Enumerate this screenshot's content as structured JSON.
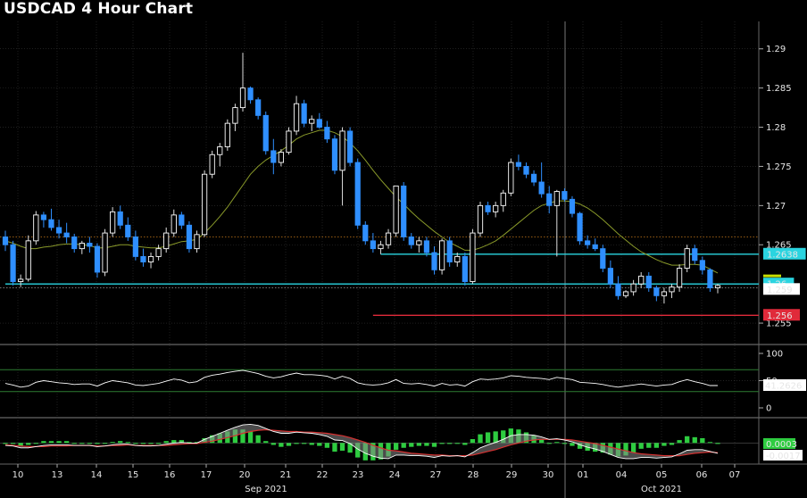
{
  "title": "USDCAD 4 Hour Chart",
  "colors": {
    "background": "#000000",
    "bull_candle": "#ffffff",
    "bear_candle": "#2f8fff",
    "moving_average": "#8a9a2a",
    "support_line": "#2ad4e0",
    "resistance_line": "#2ad4e0",
    "low_line": "#e02a3a",
    "rsi_line": "#ffffff",
    "rsi_bands": "#2e7d32",
    "macd_line": "#ffffff",
    "signal_line": "#d43030",
    "histogram_pos": "#2ecc40",
    "histogram_neg": "#2ecc40",
    "grid": "#333333"
  },
  "chart_data": [
    {
      "type": "candlestick",
      "panel": "price",
      "title": "USDCAD 4 Hour Chart",
      "ylim": [
        1.2525,
        1.2935
      ],
      "y_ticks": [
        "1.29",
        "1.285",
        "1.28",
        "1.275",
        "1.27",
        "1.265",
        "1.255"
      ],
      "x_tick_labels": [
        "10",
        "13",
        "14",
        "15",
        "16",
        "17",
        "20",
        "21",
        "22",
        "23",
        "24",
        "27",
        "28",
        "29",
        "30",
        "01",
        "04",
        "05",
        "06",
        "07"
      ],
      "x_group_labels": [
        "Sep 2021",
        "Oct 2021"
      ],
      "grid": true,
      "candles": [
        [
          1.266,
          1.2668,
          1.2642,
          1.265
        ],
        [
          1.265,
          1.2655,
          1.2598,
          1.2603
        ],
        [
          1.2603,
          1.2612,
          1.2596,
          1.2606
        ],
        [
          1.2606,
          1.2662,
          1.2603,
          1.2655
        ],
        [
          1.2655,
          1.2693,
          1.265,
          1.2688
        ],
        [
          1.2688,
          1.2692,
          1.2672,
          1.2682
        ],
        [
          1.2682,
          1.2696,
          1.2668,
          1.2672
        ],
        [
          1.2672,
          1.2682,
          1.2658,
          1.2665
        ],
        [
          1.2665,
          1.2678,
          1.2652,
          1.266
        ],
        [
          1.266,
          1.2664,
          1.264,
          1.2645
        ],
        [
          1.2645,
          1.2655,
          1.2638,
          1.2652
        ],
        [
          1.2652,
          1.266,
          1.264,
          1.2648
        ],
        [
          1.2648,
          1.2652,
          1.2608,
          1.2615
        ],
        [
          1.2615,
          1.267,
          1.261,
          1.2665
        ],
        [
          1.2665,
          1.2698,
          1.266,
          1.2692
        ],
        [
          1.2692,
          1.27,
          1.267,
          1.2675
        ],
        [
          1.2675,
          1.2685,
          1.2655,
          1.266
        ],
        [
          1.266,
          1.2668,
          1.263,
          1.2635
        ],
        [
          1.2635,
          1.2645,
          1.2622,
          1.2628
        ],
        [
          1.2628,
          1.264,
          1.262,
          1.2635
        ],
        [
          1.2635,
          1.265,
          1.263,
          1.2645
        ],
        [
          1.2645,
          1.2672,
          1.264,
          1.2665
        ],
        [
          1.2665,
          1.2695,
          1.266,
          1.2688
        ],
        [
          1.2688,
          1.2692,
          1.267,
          1.2675
        ],
        [
          1.2675,
          1.268,
          1.264,
          1.2645
        ],
        [
          1.2645,
          1.2668,
          1.264,
          1.2663
        ],
        [
          1.2663,
          1.2745,
          1.266,
          1.274
        ],
        [
          1.274,
          1.277,
          1.2735,
          1.2765
        ],
        [
          1.2765,
          1.278,
          1.275,
          1.2775
        ],
        [
          1.2775,
          1.281,
          1.277,
          1.2805
        ],
        [
          1.2805,
          1.283,
          1.2795,
          1.2825
        ],
        [
          1.2825,
          1.2895,
          1.282,
          1.285
        ],
        [
          1.285,
          1.2852,
          1.283,
          1.2835
        ],
        [
          1.2835,
          1.2838,
          1.281,
          1.2815
        ],
        [
          1.2815,
          1.282,
          1.2765,
          1.277
        ],
        [
          1.277,
          1.2785,
          1.274,
          1.2755
        ],
        [
          1.2755,
          1.2772,
          1.275,
          1.2768
        ],
        [
          1.2768,
          1.28,
          1.2765,
          1.2795
        ],
        [
          1.2795,
          1.284,
          1.279,
          1.283
        ],
        [
          1.283,
          1.2835,
          1.28,
          1.2805
        ],
        [
          1.2805,
          1.2815,
          1.2795,
          1.281
        ],
        [
          1.281,
          1.2818,
          1.2798,
          1.28
        ],
        [
          1.28,
          1.2808,
          1.278,
          1.2785
        ],
        [
          1.2785,
          1.279,
          1.274,
          1.2745
        ],
        [
          1.2745,
          1.28,
          1.27,
          1.2795
        ],
        [
          1.2795,
          1.28,
          1.275,
          1.2755
        ],
        [
          1.2755,
          1.276,
          1.267,
          1.2675
        ],
        [
          1.2675,
          1.268,
          1.265,
          1.2655
        ],
        [
          1.2655,
          1.2665,
          1.264,
          1.2645
        ],
        [
          1.2645,
          1.2655,
          1.2638,
          1.265
        ],
        [
          1.265,
          1.267,
          1.2645,
          1.2665
        ],
        [
          1.2665,
          1.2725,
          1.266,
          1.2725
        ],
        [
          1.2725,
          1.273,
          1.2655,
          1.266
        ],
        [
          1.266,
          1.2665,
          1.2645,
          1.265
        ],
        [
          1.265,
          1.266,
          1.264,
          1.2655
        ],
        [
          1.2655,
          1.266,
          1.2635,
          1.264
        ],
        [
          1.264,
          1.2648,
          1.2612,
          1.2618
        ],
        [
          1.2618,
          1.2658,
          1.2612,
          1.2655
        ],
        [
          1.2655,
          1.266,
          1.2622,
          1.2628
        ],
        [
          1.2628,
          1.264,
          1.2622,
          1.2635
        ],
        [
          1.2635,
          1.264,
          1.2598,
          1.2603
        ],
        [
          1.2603,
          1.267,
          1.26,
          1.2665
        ],
        [
          1.2665,
          1.2705,
          1.266,
          1.27
        ],
        [
          1.27,
          1.2705,
          1.2688,
          1.2692
        ],
        [
          1.2692,
          1.2705,
          1.2685,
          1.27
        ],
        [
          1.27,
          1.272,
          1.2692,
          1.2716
        ],
        [
          1.2716,
          1.276,
          1.2712,
          1.2755
        ],
        [
          1.2755,
          1.2765,
          1.2745,
          1.275
        ],
        [
          1.275,
          1.2755,
          1.2735,
          1.274
        ],
        [
          1.274,
          1.2745,
          1.2725,
          1.273
        ],
        [
          1.273,
          1.2755,
          1.271,
          1.2715
        ],
        [
          1.2715,
          1.2725,
          1.269,
          1.27
        ],
        [
          1.27,
          1.272,
          1.2635,
          1.2718
        ],
        [
          1.2718,
          1.2722,
          1.2705,
          1.2708
        ],
        [
          1.2708,
          1.2712,
          1.2685,
          1.269
        ],
        [
          1.269,
          1.2692,
          1.265,
          1.2655
        ],
        [
          1.2655,
          1.2662,
          1.2645,
          1.265
        ],
        [
          1.265,
          1.2658,
          1.2642,
          1.2645
        ],
        [
          1.2645,
          1.265,
          1.2615,
          1.262
        ],
        [
          1.262,
          1.263,
          1.2595,
          1.26
        ],
        [
          1.26,
          1.261,
          1.258,
          1.2585
        ],
        [
          1.2585,
          1.2592,
          1.2582,
          1.259
        ],
        [
          1.259,
          1.2605,
          1.2585,
          1.26
        ],
        [
          1.26,
          1.2615,
          1.2595,
          1.261
        ],
        [
          1.261,
          1.2615,
          1.259,
          1.2595
        ],
        [
          1.2595,
          1.2598,
          1.2578,
          1.2585
        ],
        [
          1.2585,
          1.2595,
          1.2575,
          1.259
        ],
        [
          1.259,
          1.26,
          1.2582,
          1.2596
        ],
        [
          1.2596,
          1.2625,
          1.259,
          1.262
        ],
        [
          1.262,
          1.265,
          1.2615,
          1.2645
        ],
        [
          1.2645,
          1.265,
          1.2625,
          1.263
        ],
        [
          1.263,
          1.2635,
          1.2612,
          1.2618
        ],
        [
          1.2618,
          1.262,
          1.259,
          1.2595
        ],
        [
          1.2595,
          1.26,
          1.2588,
          1.2598
        ]
      ],
      "moving_average": [
        1.2655,
        1.2652,
        1.2648,
        1.2645,
        1.2645,
        1.2647,
        1.2648,
        1.265,
        1.2651,
        1.2651,
        1.265,
        1.2649,
        1.2646,
        1.2646,
        1.2648,
        1.265,
        1.265,
        1.2648,
        1.2647,
        1.2646,
        1.2646,
        1.2648,
        1.2651,
        1.2654,
        1.2655,
        1.2657,
        1.2665,
        1.2675,
        1.2686,
        1.2698,
        1.2712,
        1.2726,
        1.274,
        1.275,
        1.2758,
        1.2764,
        1.277,
        1.2777,
        1.2785,
        1.279,
        1.2793,
        1.2796,
        1.2796,
        1.2793,
        1.2788,
        1.278,
        1.277,
        1.2758,
        1.2745,
        1.2733,
        1.2722,
        1.2711,
        1.2702,
        1.2692,
        1.2683,
        1.2675,
        1.2667,
        1.266,
        1.2653,
        1.2648,
        1.2643,
        1.2643,
        1.2646,
        1.265,
        1.2655,
        1.2662,
        1.267,
        1.2678,
        1.2686,
        1.2694,
        1.27,
        1.2703,
        1.2706,
        1.2706,
        1.2705,
        1.2702,
        1.2697,
        1.269,
        1.2682,
        1.2673,
        1.2664,
        1.2656,
        1.2648,
        1.2641,
        1.2636,
        1.2631,
        1.2627,
        1.2624,
        1.2624,
        1.2625,
        1.2625,
        1.2624,
        1.2619,
        1.2614
      ],
      "horizontal_lines": [
        {
          "label": "1.2638",
          "value": 1.2638,
          "color": "#2ad4e0",
          "from_index": 49
        },
        {
          "label": "1.26",
          "value": 1.26,
          "color": "#2ad4e0",
          "from_index": 0
        },
        {
          "label": "1.256",
          "value": 1.256,
          "color": "#e02a3a",
          "from_index": 48
        }
      ],
      "dotted_reference": [
        {
          "value": 1.266,
          "color": "#c87a1a"
        },
        {
          "value": 1.2595,
          "color": "#a0a0a0"
        }
      ],
      "right_labels": [
        {
          "text": "1.2638",
          "bg": "#2ad4e0",
          "color": "#000000"
        },
        {
          "text": "1.26",
          "bg": "#2ad4e0",
          "color": "#000000"
        },
        {
          "text": "1.259",
          "bg": "#ffffff",
          "color": "#000000"
        },
        {
          "text": "1.256",
          "bg": "#e02a3a",
          "color": "#ffffff"
        }
      ]
    },
    {
      "type": "line",
      "panel": "rsi",
      "ylim": [
        0,
        100
      ],
      "y_ticks": [
        "100",
        "50",
        "0"
      ],
      "bands": [
        70,
        30
      ],
      "last_value_label": "41.2626",
      "values": [
        45,
        42,
        38,
        40,
        47,
        50,
        48,
        46,
        45,
        43,
        44,
        44,
        40,
        46,
        50,
        48,
        46,
        42,
        41,
        43,
        45,
        49,
        53,
        51,
        46,
        48,
        56,
        60,
        62,
        65,
        67,
        69,
        66,
        63,
        58,
        55,
        57,
        61,
        64,
        61,
        61,
        60,
        58,
        53,
        58,
        54,
        46,
        43,
        42,
        43,
        46,
        52,
        45,
        44,
        45,
        43,
        40,
        45,
        42,
        43,
        40,
        48,
        53,
        52,
        53,
        55,
        59,
        58,
        56,
        55,
        54,
        52,
        56,
        54,
        52,
        47,
        46,
        45,
        43,
        40,
        38,
        40,
        42,
        44,
        42,
        40,
        42,
        43,
        48,
        52,
        48,
        45,
        41,
        41
      ]
    },
    {
      "type": "line",
      "panel": "macd",
      "value_labels": [
        "0.0003",
        "-0.0017"
      ],
      "series": [
        {
          "name": "macd",
          "values": [
            -0.0004,
            -0.0005,
            -0.0008,
            -0.0008,
            -0.0006,
            -0.0004,
            -0.0003,
            -0.0003,
            -0.0003,
            -0.0004,
            -0.0004,
            -0.0004,
            -0.0006,
            -0.0005,
            -0.0003,
            -0.0002,
            -0.0002,
            -0.0004,
            -0.0005,
            -0.0005,
            -0.0004,
            -0.0002,
            0.0,
            0.0001,
            0.0,
            0.0,
            0.0006,
            0.0011,
            0.0016,
            0.0021,
            0.0026,
            0.003,
            0.0031,
            0.0029,
            0.0024,
            0.0019,
            0.0016,
            0.0016,
            0.0018,
            0.0017,
            0.0016,
            0.0014,
            0.0011,
            0.0005,
            0.0004,
            -0.0001,
            -0.001,
            -0.0017,
            -0.0022,
            -0.0025,
            -0.0026,
            -0.002,
            -0.002,
            -0.0021,
            -0.0021,
            -0.0022,
            -0.0024,
            -0.0021,
            -0.0022,
            -0.0021,
            -0.0023,
            -0.0016,
            -0.0008,
            -0.0003,
            0.0001,
            0.0006,
            0.0012,
            0.0014,
            0.0014,
            0.0013,
            0.001,
            0.0006,
            0.0007,
            0.0005,
            0.0002,
            -0.0003,
            -0.0007,
            -0.001,
            -0.0014,
            -0.0019,
            -0.0024,
            -0.0026,
            -0.0026,
            -0.0024,
            -0.0024,
            -0.0025,
            -0.0024,
            -0.0023,
            -0.0018,
            -0.0012,
            -0.0011,
            -0.0011,
            -0.0014,
            -0.0017
          ]
        },
        {
          "name": "signal",
          "values": [
            -0.0003,
            -0.0004,
            -0.0005,
            -0.0006,
            -0.0006,
            -0.0006,
            -0.0005,
            -0.0005,
            -0.0005,
            -0.0004,
            -0.0004,
            -0.0004,
            -0.0005,
            -0.0005,
            -0.0004,
            -0.0004,
            -0.0003,
            -0.0004,
            -0.0004,
            -0.0004,
            -0.0004,
            -0.0004,
            -0.0003,
            -0.0002,
            -0.0001,
            -0.0001,
            0.0001,
            0.0003,
            0.0006,
            0.0009,
            0.0012,
            0.0016,
            0.0019,
            0.0021,
            0.0022,
            0.0021,
            0.002,
            0.0019,
            0.0019,
            0.0018,
            0.0018,
            0.0017,
            0.0016,
            0.0014,
            0.0012,
            0.0009,
            0.0005,
            0.0001,
            -0.0004,
            -0.0008,
            -0.0012,
            -0.0013,
            -0.0015,
            -0.0017,
            -0.0018,
            -0.0019,
            -0.002,
            -0.002,
            -0.0021,
            -0.0021,
            -0.0021,
            -0.002,
            -0.0017,
            -0.0014,
            -0.0011,
            -0.0007,
            -0.0003,
            0.0,
            0.0003,
            0.0005,
            0.0006,
            0.0006,
            0.0006,
            0.0006,
            0.0005,
            0.0003,
            0.0001,
            -0.0001,
            -0.0004,
            -0.0007,
            -0.001,
            -0.0013,
            -0.0016,
            -0.0018,
            -0.0019,
            -0.002,
            -0.0021,
            -0.0021,
            -0.0021,
            -0.0019,
            -0.0017,
            -0.0016,
            -0.0015,
            -0.0016
          ]
        }
      ]
    }
  ]
}
